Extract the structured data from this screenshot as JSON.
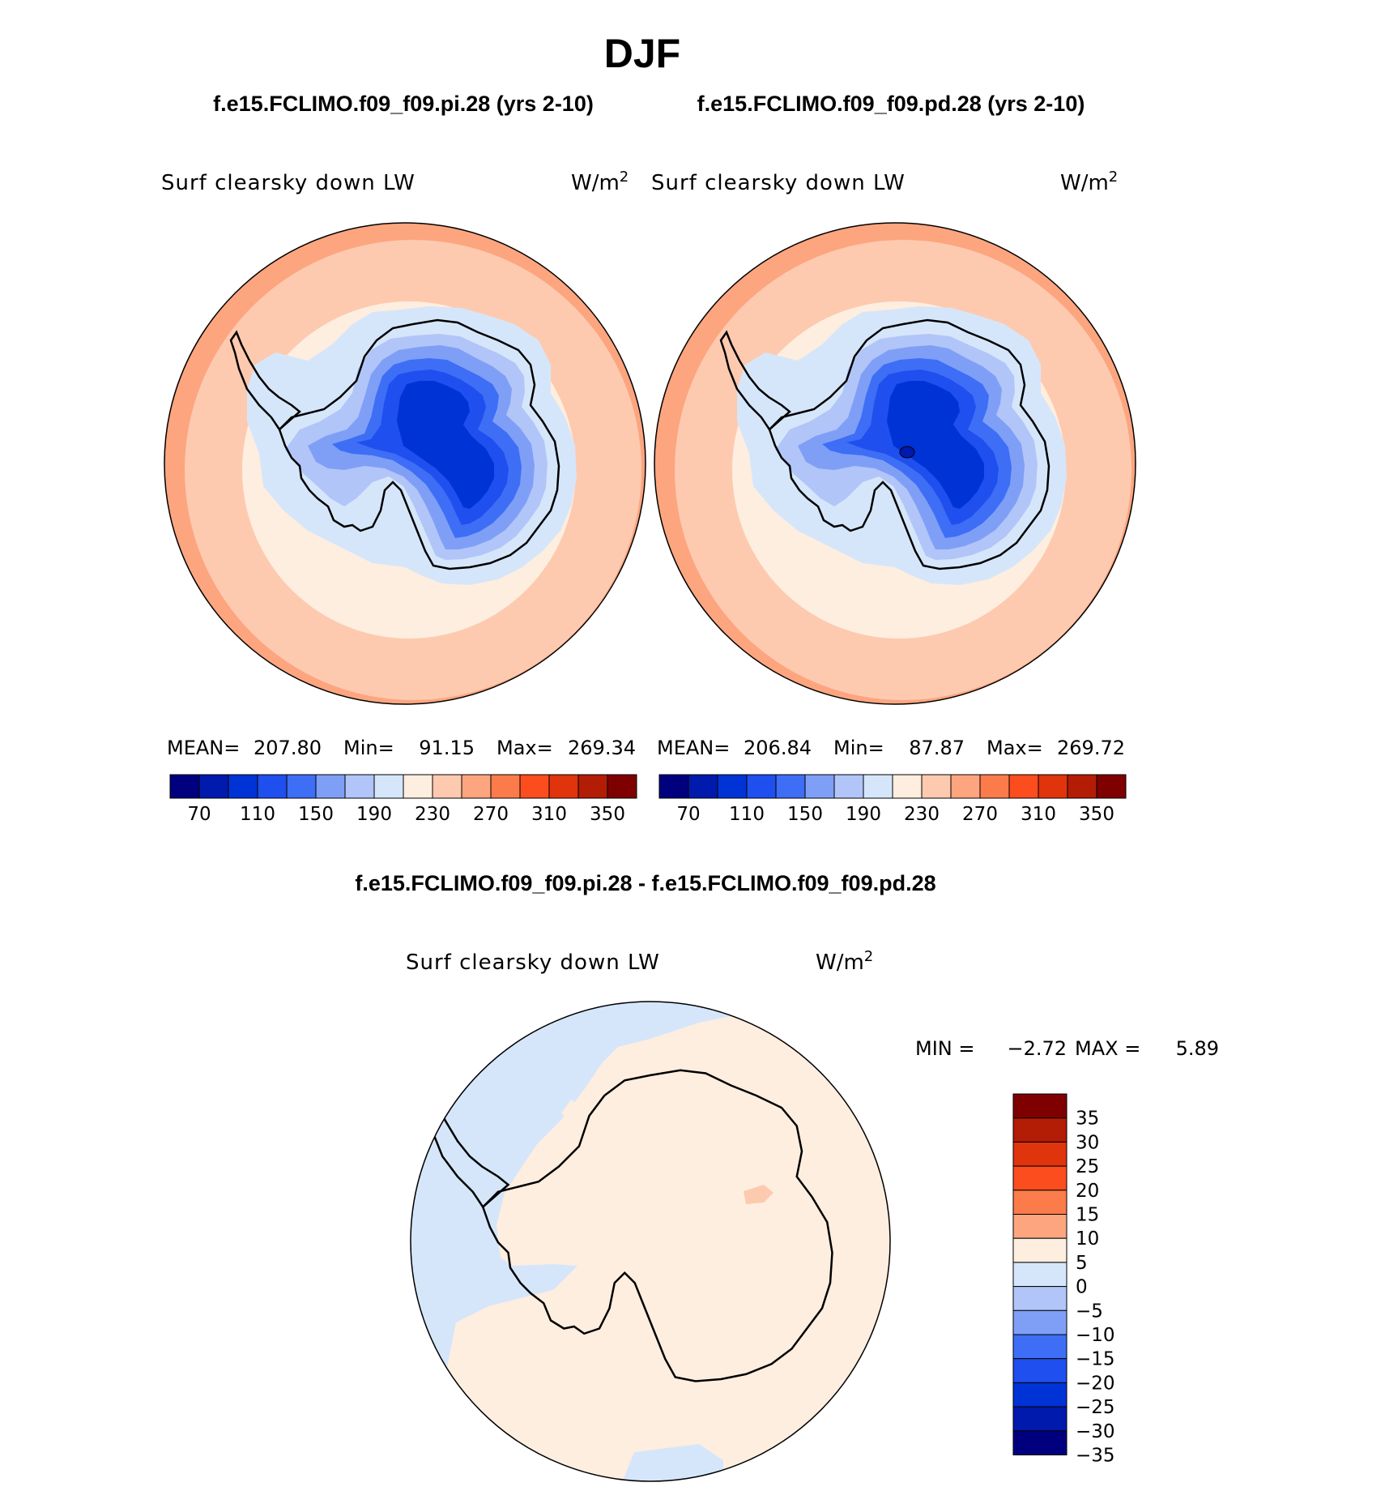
{
  "season_title": "DJF",
  "panels": [
    {
      "case_title": "f.e15.FCLIMO.f09_f09.pi.28 (yrs 2-10)",
      "variable": "Surf clearsky down LW",
      "units": "W/m",
      "units_sup": "2",
      "stats": {
        "mean_label": "MEAN=",
        "mean": "207.80",
        "min_label": "Min=",
        "min": "91.15",
        "max_label": "Max=",
        "max": "269.34"
      }
    },
    {
      "case_title": "f.e15.FCLIMO.f09_f09.pd.28 (yrs 2-10)",
      "variable": "Surf clearsky down LW",
      "units": "W/m",
      "units_sup": "2",
      "stats": {
        "mean_label": "MEAN=",
        "mean": "206.84",
        "min_label": "Min=",
        "min": "87.87",
        "max_label": "Max=",
        "max": "269.72"
      }
    }
  ],
  "abs_colorbar": {
    "colors": [
      "#00007f",
      "#001aad",
      "#0033d6",
      "#1f4fef",
      "#3d6ef5",
      "#7f9ff7",
      "#b2c5f8",
      "#d6e6fa",
      "#feeedf",
      "#fdcab0",
      "#fca57f",
      "#fb7b4b",
      "#fb4d1e",
      "#e0340c",
      "#b31c05",
      "#7f0000"
    ],
    "labels": [
      "70",
      "110",
      "150",
      "190",
      "230",
      "270",
      "310",
      "350"
    ]
  },
  "difference": {
    "title": "f.e15.FCLIMO.f09_f09.pi.28 - f.e15.FCLIMO.f09_f09.pd.28",
    "variable": "Surf clearsky down LW",
    "units": "W/m",
    "units_sup": "2",
    "min_label": "MIN =",
    "min": "−2.72",
    "max_label": "MAX =",
    "max": "5.89"
  },
  "diff_colorbar": {
    "colors": [
      "#7f0000",
      "#b31c05",
      "#e0340c",
      "#fb4d1e",
      "#fb7b4b",
      "#fca57f",
      "#feeedf",
      "#d6e6fa",
      "#b2c5f8",
      "#7f9ff7",
      "#3d6ef5",
      "#1f4fef",
      "#0033d6",
      "#001aad",
      "#00007f"
    ],
    "labels": [
      "35",
      "30",
      "25",
      "20",
      "15",
      "10",
      "5",
      "0",
      "−5",
      "−10",
      "−15",
      "−20",
      "−25",
      "−30",
      "−35"
    ]
  }
}
